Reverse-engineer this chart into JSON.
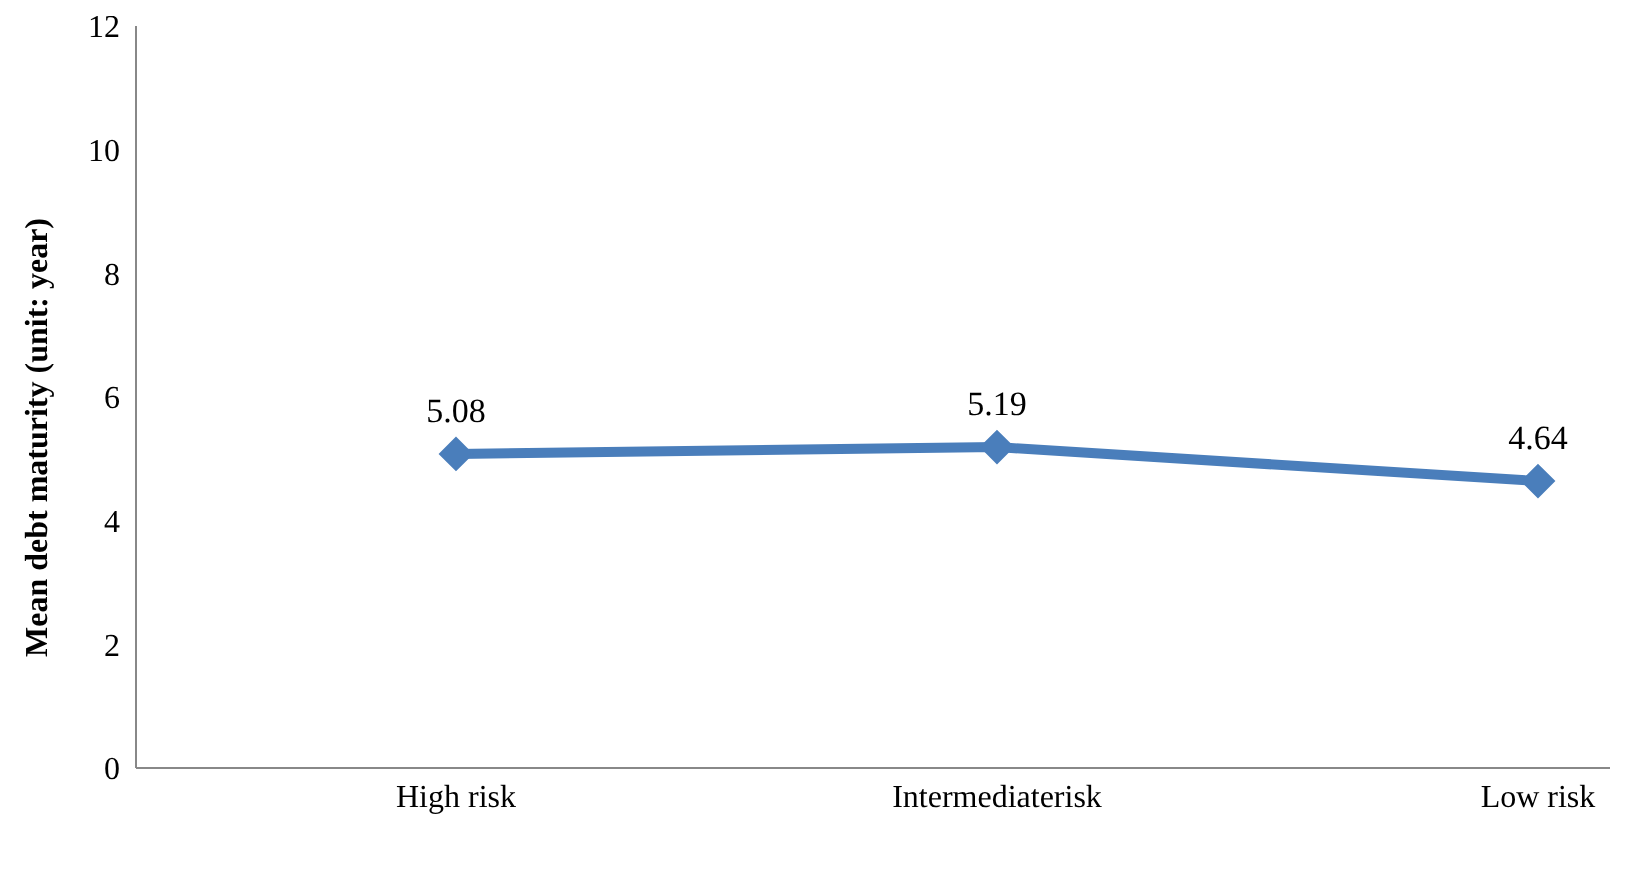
{
  "chart_data": {
    "type": "line",
    "ylabel": "Mean debt maturity (unit: year)",
    "categories": [
      "High risk",
      "Intermediaterisk",
      "Low risk"
    ],
    "series": [
      {
        "color": "#4a7ebb",
        "values": [
          5.08,
          5.19,
          4.64
        ]
      }
    ],
    "ylim": [
      0,
      12
    ],
    "yticks": [
      0,
      2,
      4,
      6,
      8,
      10,
      12
    ],
    "grid": false,
    "legend": false,
    "marker": "diamond",
    "line_style": "solid",
    "data_labels": true
  }
}
